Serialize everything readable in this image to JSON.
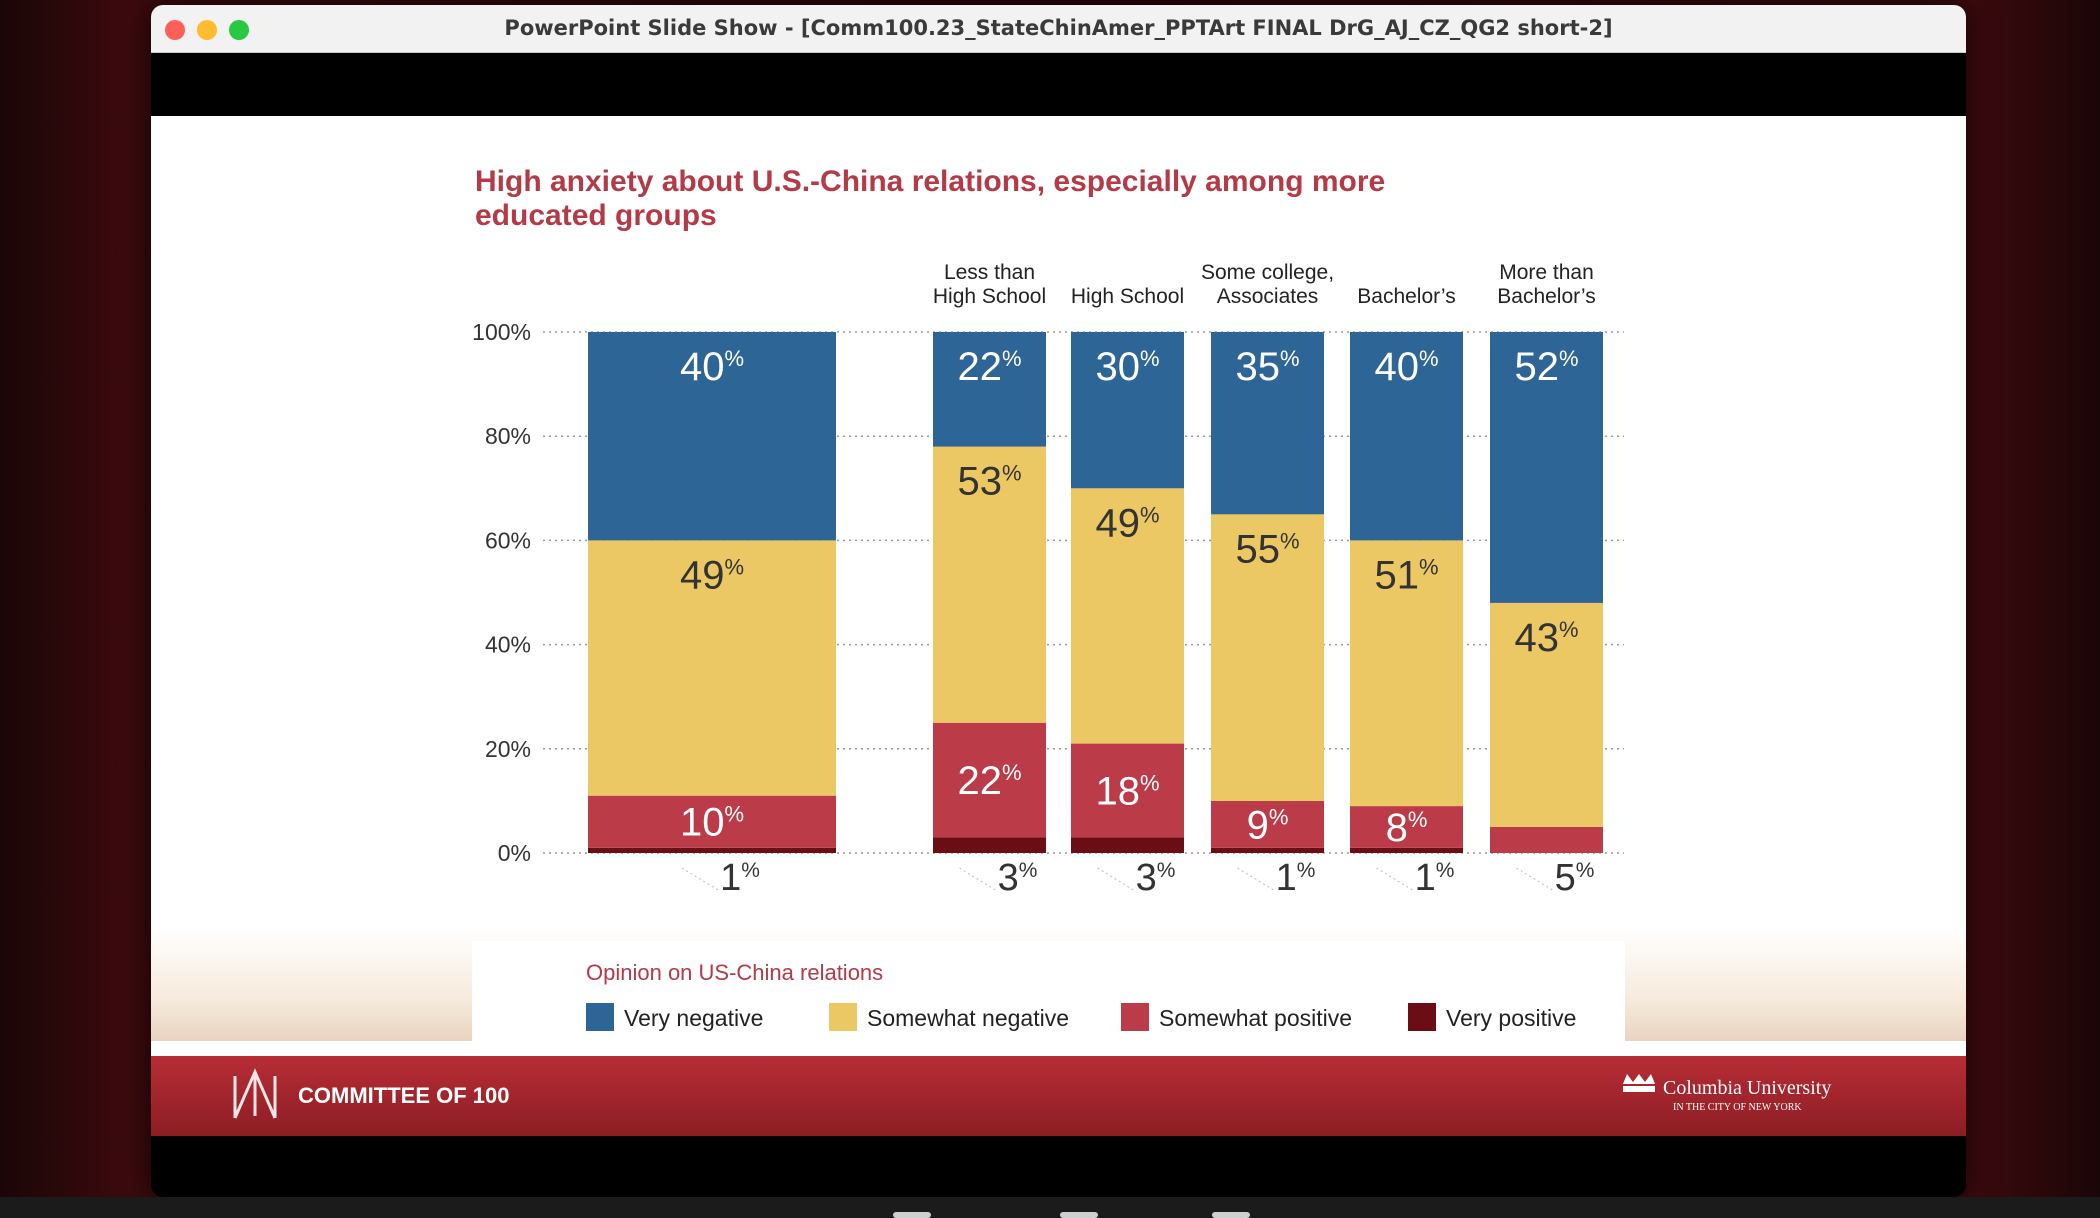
{
  "window": {
    "title": "PowerPoint Slide Show - [Comm100.23_StateChinAmer_PPTArt FINAL DrG_AJ_CZ_QG2 short-2]"
  },
  "slide": {
    "footer": {
      "left_logo_text": "COMMITTEE OF 100",
      "right_logo_text": "Columbia University",
      "right_logo_subtext": "IN THE CITY OF NEW YORK"
    }
  },
  "chart_data": {
    "type": "bar",
    "stacked": true,
    "title": "High anxiety about U.S.-China relations, especially among more educated groups",
    "title_lines": [
      "High anxiety about U.S.-China relations, especially among more",
      "educated groups"
    ],
    "categories": [
      "",
      "Less than High School",
      "High School",
      "Some college, Associates",
      "Bachelor's",
      "More than Bachelor's"
    ],
    "category_label_lines": [
      [],
      [
        "Less than",
        "High School"
      ],
      [
        "High School"
      ],
      [
        "Some college,",
        "Associates"
      ],
      [
        "Bachelor’s"
      ],
      [
        "More than",
        "Bachelor’s"
      ]
    ],
    "yticks": [
      "0%",
      "20%",
      "40%",
      "60%",
      "80%",
      "100%"
    ],
    "ylim": [
      0,
      100
    ],
    "grid": true,
    "legend_title": "Opinion on US-China relations",
    "legend_position": "bottom",
    "series": [
      {
        "name": "Very negative",
        "color": "#2e6597",
        "values": [
          40,
          22,
          30,
          35,
          40,
          52
        ],
        "labels": [
          "40%",
          "22%",
          "30%",
          "35%",
          "40%",
          "52%"
        ]
      },
      {
        "name": "Somewhat negative",
        "color": "#ecc864",
        "values": [
          49,
          53,
          49,
          55,
          51,
          43
        ],
        "labels": [
          "49%",
          "53%",
          "49%",
          "55%",
          "51%",
          "43%"
        ]
      },
      {
        "name": "Somewhat positive",
        "color": "#bb3b48",
        "values": [
          10,
          22,
          18,
          9,
          8,
          5
        ],
        "labels": [
          "10%",
          "22%",
          "18%",
          "9%",
          "8%",
          ""
        ]
      },
      {
        "name": "Very positive",
        "color": "#6a0d15",
        "values": [
          1,
          3,
          3,
          1,
          1,
          0
        ],
        "labels": [
          "",
          "",
          "",
          "",
          "",
          ""
        ]
      }
    ],
    "below_bar_labels": [
      "1%",
      "3%",
      "3%",
      "1%",
      "1%",
      "5%"
    ],
    "title_color": "#b33a46",
    "text_color": "#333333"
  }
}
